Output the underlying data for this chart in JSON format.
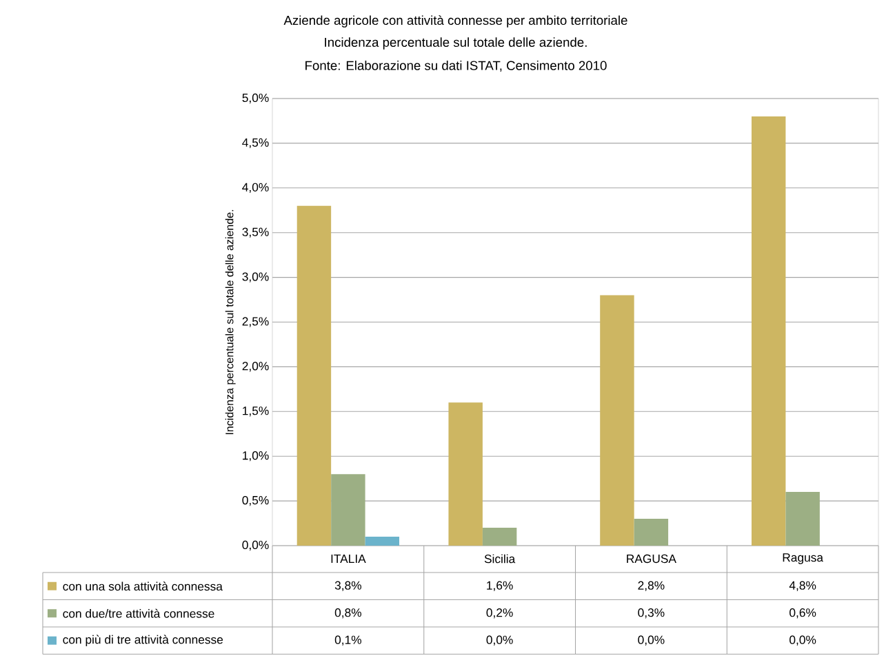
{
  "chart_data": {
    "type": "bar",
    "title": "Aziende agricole con attività connesse per ambito territoriale",
    "subtitle": "Incidenza percentuale sul totale delle aziende.",
    "annotations": [
      "Fonte: Elaborazione su dati ISTAT, Censimento 2010"
    ],
    "ylabel": "Incidenza percentuale sul totale delle aziende.",
    "categories": [
      "ITALIA",
      "Sicilia",
      "RAGUSA",
      "Ragusa"
    ],
    "series": [
      {
        "name": "con una sola attività connessa",
        "color": "#cdb662",
        "values": [
          3.8,
          1.6,
          2.8,
          4.8
        ],
        "value_labels": [
          "3,8%",
          "1,6%",
          "2,8%",
          "4,8%"
        ]
      },
      {
        "name": "con due/tre attività connesse",
        "color": "#9caf84",
        "values": [
          0.8,
          0.2,
          0.3,
          0.6
        ],
        "value_labels": [
          "0,8%",
          "0,2%",
          "0,3%",
          "0,6%"
        ]
      },
      {
        "name": "con più di tre attività connesse",
        "color": "#6bb3cb",
        "values": [
          0.1,
          0.0,
          0.0,
          0.0
        ],
        "value_labels": [
          "0,1%",
          "0,0%",
          "0,0%",
          "0,0%"
        ]
      }
    ],
    "ylim": [
      0,
      5
    ],
    "yticks": [
      {
        "value": 0,
        "label": "0,0%"
      },
      {
        "value": 0.5,
        "label": "0,5%"
      },
      {
        "value": 1,
        "label": "1,0%"
      },
      {
        "value": 1.5,
        "label": "1,5%"
      },
      {
        "value": 2,
        "label": "2,0%"
      },
      {
        "value": 2.5,
        "label": "2,5%"
      },
      {
        "value": 3,
        "label": "3,0%"
      },
      {
        "value": 3.5,
        "label": "3,5%"
      },
      {
        "value": 4,
        "label": "4,0%"
      },
      {
        "value": 4.5,
        "label": "4,5%"
      },
      {
        "value": 5,
        "label": "5,0%"
      }
    ],
    "grid": "y",
    "legend": "bottom"
  }
}
